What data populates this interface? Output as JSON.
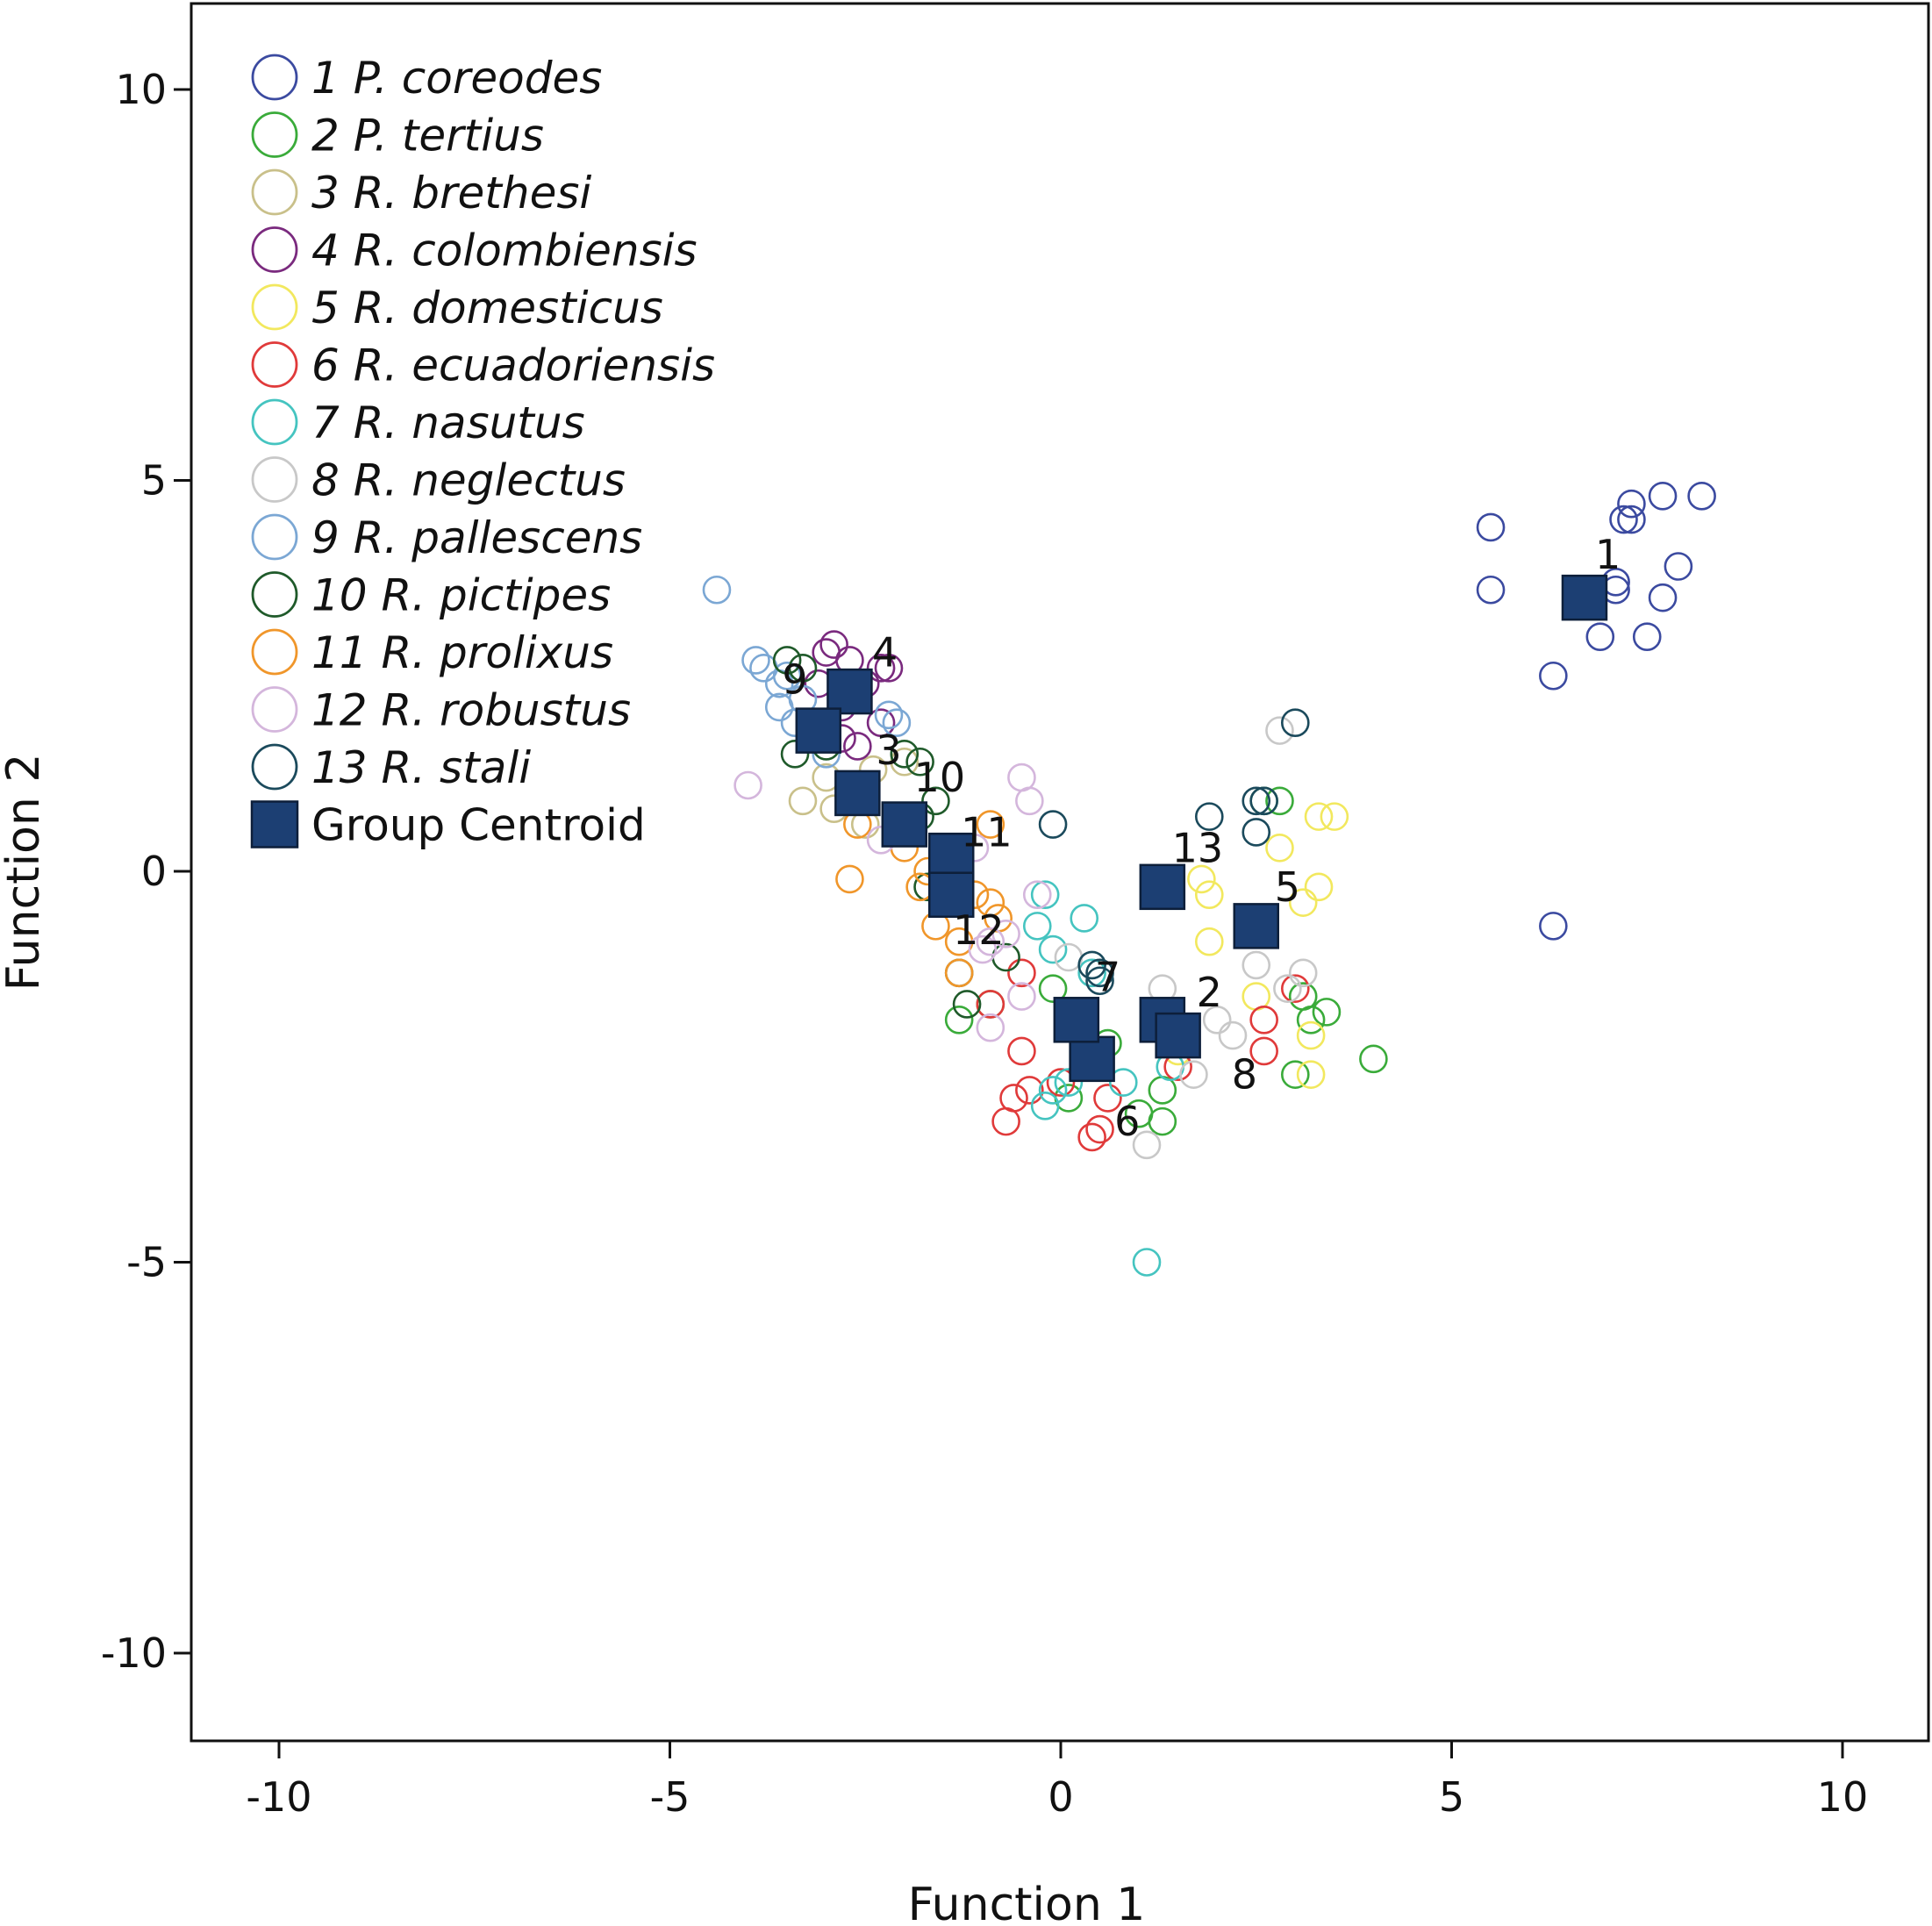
{
  "chart_data": {
    "type": "scatter",
    "title": "",
    "xlabel": "Function 1",
    "ylabel": "Function 2",
    "xlim": [
      -11.5,
      10.7
    ],
    "ylim": [
      -11.0,
      11.2
    ],
    "xticks": [
      -10,
      -5,
      0,
      5,
      10
    ],
    "yticks": [
      10,
      5,
      0,
      -5,
      -10
    ],
    "xtick_labels": [
      "-10",
      "-5",
      "0",
      "5",
      "10"
    ],
    "ytick_labels": [
      "10",
      "5",
      "0",
      "-5",
      "-10"
    ],
    "legend_position": "top-left",
    "centroid_label": "Group Centroid",
    "centroid_color": "#1c3f73",
    "series": [
      {
        "id": "1",
        "num": "1",
        "name": "P. coreodes",
        "color": "#3b4aa0",
        "points": [
          [
            5.5,
            4.4
          ],
          [
            5.5,
            3.6
          ],
          [
            7.1,
            3.7
          ],
          [
            7.1,
            3.6
          ],
          [
            7.3,
            4.7
          ],
          [
            7.3,
            4.5
          ],
          [
            7.2,
            4.5
          ],
          [
            7.7,
            4.8
          ],
          [
            8.2,
            4.8
          ],
          [
            7.9,
            3.9
          ],
          [
            7.7,
            3.5
          ],
          [
            7.5,
            3.0
          ],
          [
            6.9,
            3.0
          ],
          [
            6.3,
            2.5
          ],
          [
            6.3,
            -0.7
          ]
        ]
      },
      {
        "id": "2",
        "num": "2",
        "name": "P. tertius",
        "color": "#3aab3a",
        "points": [
          [
            2.6,
            0.9
          ],
          [
            2.8,
            0.9
          ],
          [
            3.1,
            -1.6
          ],
          [
            3.2,
            -1.9
          ],
          [
            3.4,
            -1.8
          ],
          [
            3.0,
            -2.6
          ],
          [
            4.0,
            -2.4
          ],
          [
            1.3,
            -2.8
          ],
          [
            1.3,
            -3.2
          ],
          [
            1.0,
            -3.1
          ],
          [
            0.6,
            -2.2
          ],
          [
            0.3,
            -2.3
          ],
          [
            -0.1,
            -1.5
          ],
          [
            0.1,
            -2.9
          ],
          [
            -1.3,
            -1.9
          ],
          [
            -0.9,
            -1.7
          ]
        ]
      },
      {
        "id": "3",
        "num": "3",
        "name": "R. brethesi",
        "color": "#c9c08a",
        "points": [
          [
            -3.3,
            0.9
          ],
          [
            -2.9,
            0.8
          ],
          [
            -2.5,
            0.6
          ],
          [
            -2.0,
            1.4
          ],
          [
            -2.4,
            1.3
          ],
          [
            -3.0,
            1.2
          ]
        ]
      },
      {
        "id": "4",
        "num": "4",
        "name": "R. colombiensis",
        "color": "#7a2a7e",
        "points": [
          [
            -2.9,
            2.9
          ],
          [
            -3.0,
            2.8
          ],
          [
            -2.7,
            2.7
          ],
          [
            -2.3,
            2.6
          ],
          [
            -2.2,
            2.6
          ],
          [
            -2.5,
            2.4
          ],
          [
            -3.1,
            2.4
          ],
          [
            -2.8,
            2.1
          ],
          [
            -2.3,
            1.9
          ],
          [
            -2.8,
            1.7
          ],
          [
            -2.6,
            1.6
          ]
        ]
      },
      {
        "id": "5",
        "num": "5",
        "name": "R. domesticus",
        "color": "#f2e85e",
        "points": [
          [
            1.8,
            -0.1
          ],
          [
            1.9,
            -0.3
          ],
          [
            2.8,
            0.3
          ],
          [
            3.3,
            0.7
          ],
          [
            3.5,
            0.7
          ],
          [
            3.3,
            -0.2
          ],
          [
            3.1,
            -0.4
          ],
          [
            1.9,
            -0.9
          ],
          [
            2.5,
            -1.6
          ],
          [
            3.2,
            -2.1
          ],
          [
            3.2,
            -2.6
          ],
          [
            1.5,
            -2.3
          ]
        ]
      },
      {
        "id": "6",
        "num": "6",
        "name": "R. ecuadoriensis",
        "color": "#e03a3a",
        "points": [
          [
            -0.9,
            -1.7
          ],
          [
            -0.5,
            -1.3
          ],
          [
            -0.5,
            -2.3
          ],
          [
            -0.4,
            -2.8
          ],
          [
            -0.6,
            -2.9
          ],
          [
            -0.7,
            -3.2
          ],
          [
            0.5,
            -3.3
          ],
          [
            0.4,
            -3.4
          ],
          [
            0.6,
            -2.9
          ],
          [
            0.0,
            -2.7
          ],
          [
            1.5,
            -2.5
          ],
          [
            1.6,
            -2.1
          ],
          [
            2.6,
            -1.9
          ],
          [
            2.6,
            -2.3
          ],
          [
            3.0,
            -1.5
          ]
        ]
      },
      {
        "id": "7",
        "num": "7",
        "name": "R. nasutus",
        "color": "#45c4c0",
        "points": [
          [
            -0.2,
            -0.3
          ],
          [
            -0.3,
            -0.7
          ],
          [
            0.3,
            -0.6
          ],
          [
            -0.1,
            -1.0
          ],
          [
            0.4,
            -1.3
          ],
          [
            -0.1,
            -2.8
          ],
          [
            0.1,
            -2.7
          ],
          [
            -0.2,
            -3.0
          ],
          [
            0.8,
            -2.7
          ],
          [
            1.4,
            -2.5
          ],
          [
            1.1,
            -5.0
          ]
        ]
      },
      {
        "id": "8",
        "num": "8",
        "name": "R. neglectus",
        "color": "#c8c8c8",
        "points": [
          [
            2.8,
            1.8
          ],
          [
            2.5,
            -1.2
          ],
          [
            2.0,
            -1.9
          ],
          [
            1.3,
            -1.5
          ],
          [
            1.1,
            -3.5
          ],
          [
            1.7,
            -2.6
          ],
          [
            2.2,
            -2.1
          ],
          [
            2.9,
            -1.5
          ],
          [
            3.1,
            -1.3
          ],
          [
            0.1,
            -1.1
          ]
        ]
      },
      {
        "id": "9",
        "num": "9",
        "name": "R. pallescens",
        "color": "#7ba7d4",
        "points": [
          [
            -4.4,
            3.6
          ],
          [
            -3.9,
            2.7
          ],
          [
            -3.8,
            2.6
          ],
          [
            -3.6,
            2.4
          ],
          [
            -3.5,
            2.5
          ],
          [
            -3.6,
            2.1
          ],
          [
            -3.3,
            2.2
          ],
          [
            -3.4,
            1.9
          ],
          [
            -2.2,
            2.0
          ],
          [
            -2.1,
            1.9
          ],
          [
            -3.0,
            1.5
          ]
        ]
      },
      {
        "id": "10",
        "num": "10",
        "name": "R. pictipes",
        "color": "#1f5a2a",
        "points": [
          [
            -3.5,
            2.7
          ],
          [
            -3.3,
            2.6
          ],
          [
            -3.4,
            1.5
          ],
          [
            -3.0,
            1.6
          ],
          [
            -2.0,
            1.5
          ],
          [
            -1.8,
            1.4
          ],
          [
            -1.6,
            0.9
          ],
          [
            -1.8,
            0.7
          ],
          [
            -1.7,
            -0.2
          ],
          [
            -1.3,
            -1.3
          ],
          [
            -1.2,
            -1.7
          ],
          [
            -0.7,
            -1.1
          ]
        ]
      },
      {
        "id": "11",
        "num": "11",
        "name": "R. prolixus",
        "color": "#f0962a",
        "points": [
          [
            -2.6,
            0.6
          ],
          [
            -2.0,
            0.3
          ],
          [
            -1.7,
            0.0
          ],
          [
            -1.8,
            -0.2
          ],
          [
            -1.6,
            -0.7
          ],
          [
            -1.3,
            -0.9
          ],
          [
            -1.3,
            -1.3
          ],
          [
            -0.9,
            0.6
          ],
          [
            -0.9,
            -0.4
          ],
          [
            -0.8,
            -0.6
          ],
          [
            -2.7,
            -0.1
          ],
          [
            -1.1,
            -0.3
          ]
        ]
      },
      {
        "id": "12",
        "num": "12",
        "name": "R. robustus",
        "color": "#d4b6dc",
        "points": [
          [
            -4.0,
            1.1
          ],
          [
            -0.5,
            1.2
          ],
          [
            -0.4,
            0.9
          ],
          [
            -0.3,
            -0.3
          ],
          [
            -1.1,
            0.3
          ],
          [
            -0.9,
            -0.9
          ],
          [
            -1.0,
            -1.0
          ],
          [
            -0.7,
            -0.8
          ],
          [
            -0.9,
            -2.0
          ],
          [
            -0.5,
            -1.6
          ],
          [
            -2.3,
            0.4
          ]
        ]
      },
      {
        "id": "13",
        "num": "13",
        "name": "R. stali",
        "color": "#1b4a5c",
        "points": [
          [
            3.0,
            1.9
          ],
          [
            2.6,
            0.9
          ],
          [
            2.5,
            0.9
          ],
          [
            2.5,
            0.5
          ],
          [
            1.9,
            0.7
          ],
          [
            -0.1,
            0.6
          ],
          [
            0.4,
            -1.2
          ],
          [
            0.5,
            -1.3
          ],
          [
            0.5,
            -1.4
          ],
          [
            -1.9,
            0.6
          ]
        ]
      }
    ],
    "centroids": [
      {
        "label": "1",
        "x": 6.7,
        "y": 3.5,
        "label_dx": 0.3,
        "label_dy": 0.55
      },
      {
        "label": "2",
        "x": 1.3,
        "y": -1.9,
        "label_dx": 0.6,
        "label_dy": 0.35
      },
      {
        "label": "3",
        "x": -2.6,
        "y": 1.0,
        "label_dx": 0.4,
        "label_dy": 0.55
      },
      {
        "label": "4",
        "x": -2.7,
        "y": 2.3,
        "label_dx": 0.45,
        "label_dy": 0.5
      },
      {
        "label": "5",
        "x": 2.5,
        "y": -0.7,
        "label_dx": 0.4,
        "label_dy": 0.5
      },
      {
        "label": "6",
        "x": 0.4,
        "y": -2.4,
        "label_dx": 0.45,
        "label_dy": -0.8
      },
      {
        "label": "7",
        "x": 0.2,
        "y": -1.9,
        "label_dx": 0.4,
        "label_dy": 0.55
      },
      {
        "label": "8",
        "x": 1.5,
        "y": -2.1,
        "label_dx": 0.85,
        "label_dy": -0.5
      },
      {
        "label": "9",
        "x": -3.1,
        "y": 1.8,
        "label_dx": -0.3,
        "label_dy": 0.65
      },
      {
        "label": "10",
        "x": -2.0,
        "y": 0.6,
        "label_dx": 0.45,
        "label_dy": 0.6
      },
      {
        "label": "11",
        "x": -1.4,
        "y": 0.2,
        "label_dx": 0.45,
        "label_dy": 0.3
      },
      {
        "label": "12",
        "x": -1.4,
        "y": -0.3,
        "label_dx": 0.35,
        "label_dy": -0.45
      },
      {
        "label": "13",
        "x": 1.3,
        "y": -0.2,
        "label_dx": 0.45,
        "label_dy": 0.5
      }
    ]
  }
}
